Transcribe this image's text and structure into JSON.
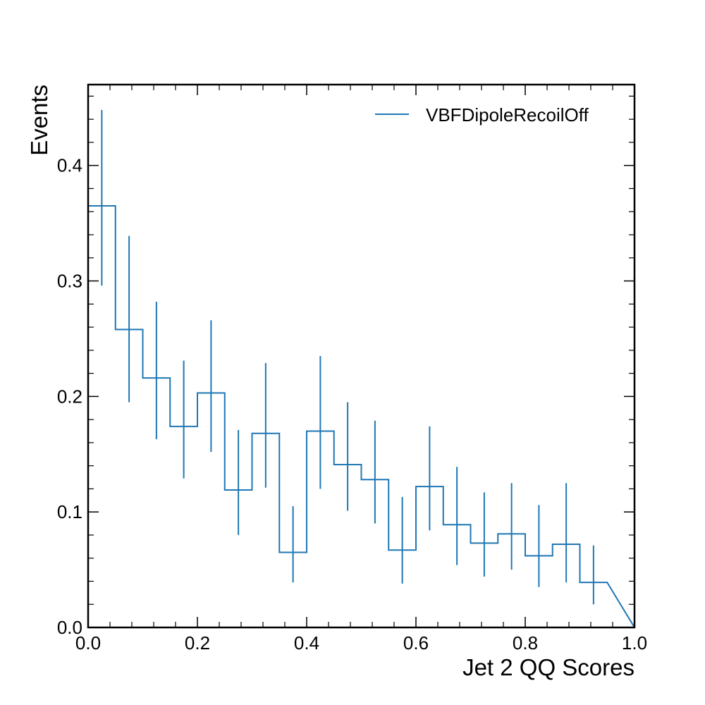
{
  "chart_data": {
    "type": "step-histogram",
    "xlabel": "Jet 2 QQ Scores",
    "ylabel": "Events",
    "xlim": [
      0.0,
      1.0
    ],
    "ylim": [
      0.0,
      0.47
    ],
    "x_ticks": [
      "0.0",
      "0.2",
      "0.4",
      "0.6",
      "0.8",
      "1.0"
    ],
    "y_ticks": [
      "0.0",
      "0.1",
      "0.2",
      "0.3",
      "0.4"
    ],
    "legend_position": "top-right",
    "series": [
      {
        "name": "VBFDipoleRecoilOff",
        "color": "#1f77b4",
        "bin_edges": [
          0.0,
          0.05,
          0.1,
          0.15,
          0.2,
          0.25,
          0.3,
          0.35,
          0.4,
          0.45,
          0.5,
          0.55,
          0.6,
          0.65,
          0.7,
          0.75,
          0.8,
          0.85,
          0.9,
          0.95
        ],
        "values": [
          0.365,
          0.258,
          0.216,
          0.174,
          0.203,
          0.119,
          0.168,
          0.065,
          0.17,
          0.141,
          0.128,
          0.067,
          0.122,
          0.089,
          0.073,
          0.081,
          0.062,
          0.072,
          0.039
        ],
        "err_low": [
          0.296,
          0.195,
          0.163,
          0.129,
          0.152,
          0.08,
          0.121,
          0.039,
          0.12,
          0.101,
          0.09,
          0.038,
          0.084,
          0.054,
          0.044,
          0.05,
          0.035,
          0.039,
          0.02
        ],
        "err_high": [
          0.448,
          0.339,
          0.282,
          0.231,
          0.266,
          0.171,
          0.229,
          0.105,
          0.235,
          0.195,
          0.179,
          0.113,
          0.174,
          0.139,
          0.117,
          0.125,
          0.106,
          0.125,
          0.071
        ]
      }
    ]
  }
}
